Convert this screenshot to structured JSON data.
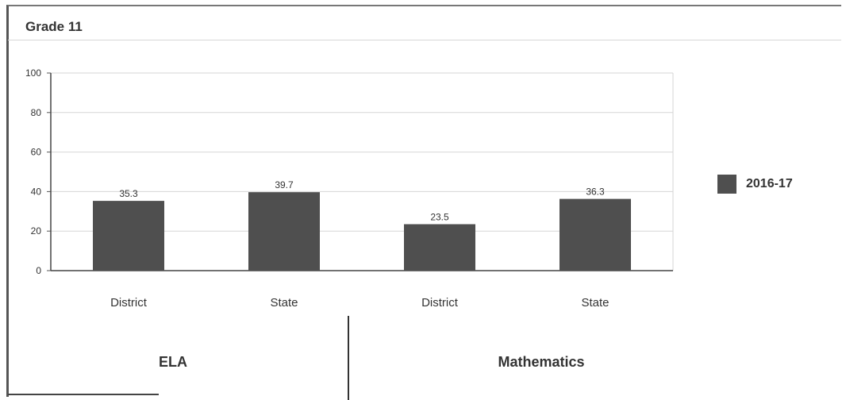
{
  "chart_data": {
    "type": "bar",
    "title": "Grade 11",
    "categories": [
      "District",
      "State",
      "District",
      "State"
    ],
    "groups": [
      {
        "label": "ELA",
        "categories": [
          "District",
          "State"
        ]
      },
      {
        "label": "Mathematics",
        "categories": [
          "District",
          "State"
        ]
      }
    ],
    "series": [
      {
        "name": "2016-17",
        "values": [
          35.3,
          39.7,
          23.5,
          36.3
        ],
        "color": "#4f4f4f"
      }
    ],
    "ylim": [
      0,
      100
    ],
    "yticks": [
      0,
      20,
      40,
      60,
      80,
      100
    ],
    "grid": true,
    "legend_position": "right"
  }
}
